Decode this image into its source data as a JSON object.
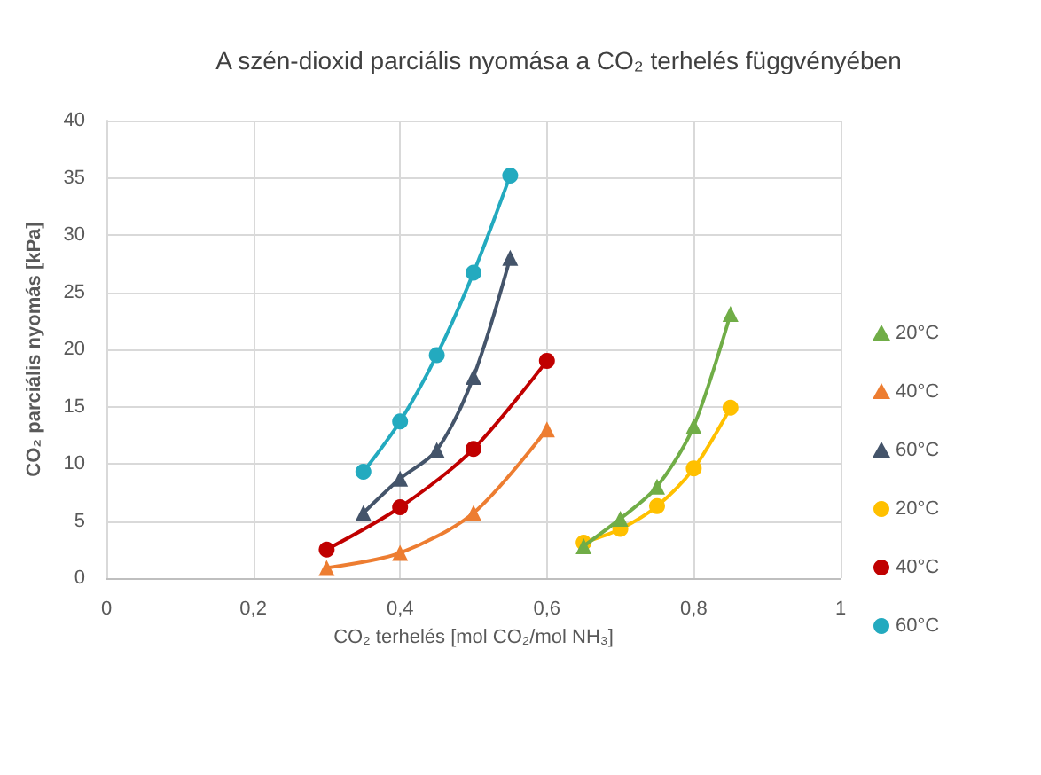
{
  "chart_data": {
    "type": "line",
    "title": "A szén-dioxid parciális nyomása a CO₂ terhelés függvényében",
    "xlabel": "CO₂ terhelés [mol CO₂/mol NH₃]",
    "ylabel": "CO₂ parciális nyomás [kPa]",
    "xlim": [
      0,
      1
    ],
    "xticks": [
      0,
      {
        "value": 0.2,
        "label": "0,2"
      },
      {
        "value": 0.4,
        "label": "0,4"
      },
      {
        "value": 0.6,
        "label": "0,6"
      },
      {
        "value": 0.8,
        "label": "0,8"
      },
      1
    ],
    "ylim": [
      0,
      40
    ],
    "yticks": [
      0,
      5,
      10,
      15,
      20,
      25,
      30,
      35,
      40
    ],
    "grid": true,
    "legend": "right",
    "line_style": "solid",
    "series": [
      {
        "name": "20°C",
        "color": "#70ad47",
        "marker": "triangle",
        "x": [
          0.65,
          0.7,
          0.75,
          0.8,
          0.85
        ],
        "values": [
          2.8,
          5.2,
          8,
          13.3,
          23.1
        ]
      },
      {
        "name": "40°C",
        "color": "#ed7d31",
        "marker": "triangle",
        "x": [
          0.3,
          0.4,
          0.5,
          0.6
        ],
        "values": [
          0.9,
          2.2,
          5.7,
          13
        ]
      },
      {
        "name": "60°C",
        "color": "#44546a",
        "marker": "triangle",
        "x": [
          0.35,
          0.4,
          0.45,
          0.5,
          0.55
        ],
        "values": [
          5.7,
          8.7,
          11.2,
          17.6,
          28
        ]
      },
      {
        "name": "20°C",
        "color": "#ffc000",
        "marker": "circle",
        "x": [
          0.65,
          0.7,
          0.75,
          0.8,
          0.85
        ],
        "values": [
          3.1,
          4.3,
          6.3,
          9.6,
          14.9
        ]
      },
      {
        "name": "40°C",
        "color": "#c00000",
        "marker": "circle",
        "x": [
          0.3,
          0.4,
          0.5,
          0.6
        ],
        "values": [
          2.5,
          6.2,
          11.3,
          19
        ]
      },
      {
        "name": "60°C",
        "color": "#23aabf",
        "marker": "circle",
        "x": [
          0.35,
          0.4,
          0.45,
          0.5,
          0.55
        ],
        "values": [
          9.3,
          13.7,
          19.5,
          26.7,
          35.2
        ]
      }
    ]
  }
}
